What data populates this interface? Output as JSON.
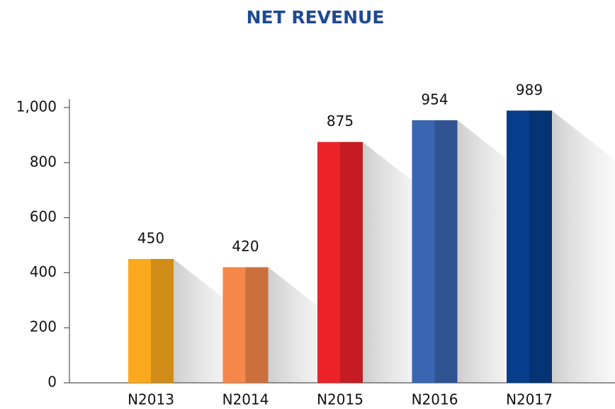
{
  "chart_data": {
    "type": "bar",
    "title": "NET REVENUE",
    "categories": [
      "N2013",
      "N2014",
      "N2015",
      "N2016",
      "N2017"
    ],
    "values": [
      450,
      420,
      875,
      954,
      989
    ],
    "colors": [
      "#f9a91b",
      "#f5874a",
      "#ec2229",
      "#3a65b0",
      "#073e8b"
    ],
    "ylim": [
      0,
      1000
    ],
    "yticks": [
      0,
      200,
      400,
      600,
      800,
      {
        "value": 1000,
        "label": "1,000"
      }
    ],
    "grid": false
  }
}
